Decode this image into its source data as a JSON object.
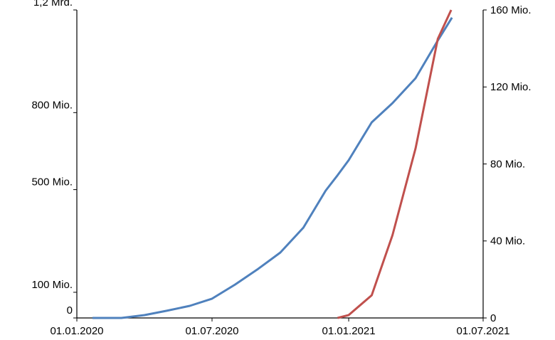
{
  "chart_data": {
    "type": "line",
    "x": [
      "2020-01-22",
      "2020-03-01",
      "2020-04-01",
      "2020-05-01",
      "2020-06-01",
      "2020-07-01",
      "2020-08-01",
      "2020-09-01",
      "2020-10-01",
      "2020-11-01",
      "2020-12-01",
      "2020-12-17",
      "2021-01-01",
      "2021-02-01",
      "2021-03-01",
      "2021-04-01",
      "2021-05-01",
      "2021-05-19",
      "2021-05-20"
    ],
    "series": [
      {
        "color": "#4f81bd",
        "values": [
          0,
          0,
          11000000,
          28000000,
          47000000,
          75000000,
          130000000,
          191000000,
          255000000,
          352000000,
          496000000,
          556000000,
          615000000,
          762000000,
          837000000,
          934000000,
          1081000000,
          1165000000,
          1170000000
        ]
      },
      {
        "color": "#c0504d",
        "axis": "y2",
        "values": [
          null,
          null,
          null,
          null,
          null,
          null,
          null,
          null,
          null,
          null,
          null,
          0,
          1500000,
          11800000,
          43000000,
          88000000,
          145000000,
          160000000,
          null
        ]
      }
    ],
    "xlim": [
      "2020-01-01",
      "2021-07-01"
    ],
    "xticks": [
      {
        "value": "2020-01-01",
        "label": "01.01.2020"
      },
      {
        "value": "2020-07-01",
        "label": "01.07.2020"
      },
      {
        "value": "2021-01-01",
        "label": "01.01.2021"
      },
      {
        "value": "2021-07-01",
        "label": "01.07.2021"
      }
    ],
    "ylim": [
      0,
      1200000000
    ],
    "yticks": [
      0,
      {
        "value": 100000000,
        "label": "100 Mio."
      },
      {
        "value": 500000000,
        "label": "500 Mio."
      },
      {
        "value": 800000000,
        "label": "800 Mio."
      },
      {
        "value": 1200000000,
        "label": "1,2 Mrd."
      }
    ],
    "y2lim": [
      0,
      160000000
    ],
    "y2ticks": [
      0,
      {
        "value": 40000000,
        "label": "40 Mio."
      },
      {
        "value": 80000000,
        "label": "80 Mio."
      },
      {
        "value": 120000000,
        "label": "120 Mio."
      },
      {
        "value": 160000000,
        "label": "160 Mio."
      }
    ]
  }
}
